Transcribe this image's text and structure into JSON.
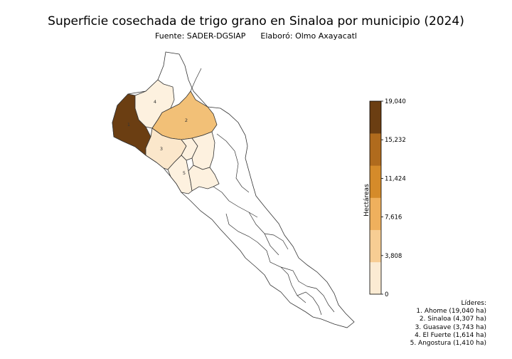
{
  "title": "Superficie cosechada de trigo grano en Sinaloa por municipio (2024)",
  "subtitle": "Fuente: SADER-DGSIAP      Elaboró: Olmo Axayacatl",
  "colorbar": {
    "label": "Hectáreas",
    "ticks": [
      "0",
      "3,808",
      "7,616",
      "11,424",
      "15,232",
      "19,040"
    ],
    "colors": [
      "#fbebd3",
      "#f7cd93",
      "#efb05d",
      "#d58b2a",
      "#b06b1d",
      "#6b3e12"
    ]
  },
  "map_data": {
    "type": "choropleth",
    "values_ha": [
      {
        "rank": "1",
        "municipio": "Ahome",
        "value": 19040,
        "color": "#6b3e12"
      },
      {
        "rank": "2",
        "municipio": "Sinaloa",
        "value": 4307,
        "color": "#f2c077"
      },
      {
        "rank": "3",
        "municipio": "Guasave",
        "value": 3743,
        "color": "#fbe7cb"
      },
      {
        "rank": "4",
        "municipio": "El Fuerte",
        "value": 1614,
        "color": "#fdf1df"
      },
      {
        "rank": "5",
        "municipio": "Angostura",
        "value": 1410,
        "color": "#fdf1df"
      }
    ]
  },
  "leaders": {
    "title": "Líderes:",
    "items": [
      "1. Ahome (19,040 ha)",
      "2. Sinaloa (4,307 ha)",
      "3. Guasave (3,743 ha)",
      "4. El Fuerte (1,614 ha)",
      "5. Angostura (1,410 ha)"
    ]
  }
}
